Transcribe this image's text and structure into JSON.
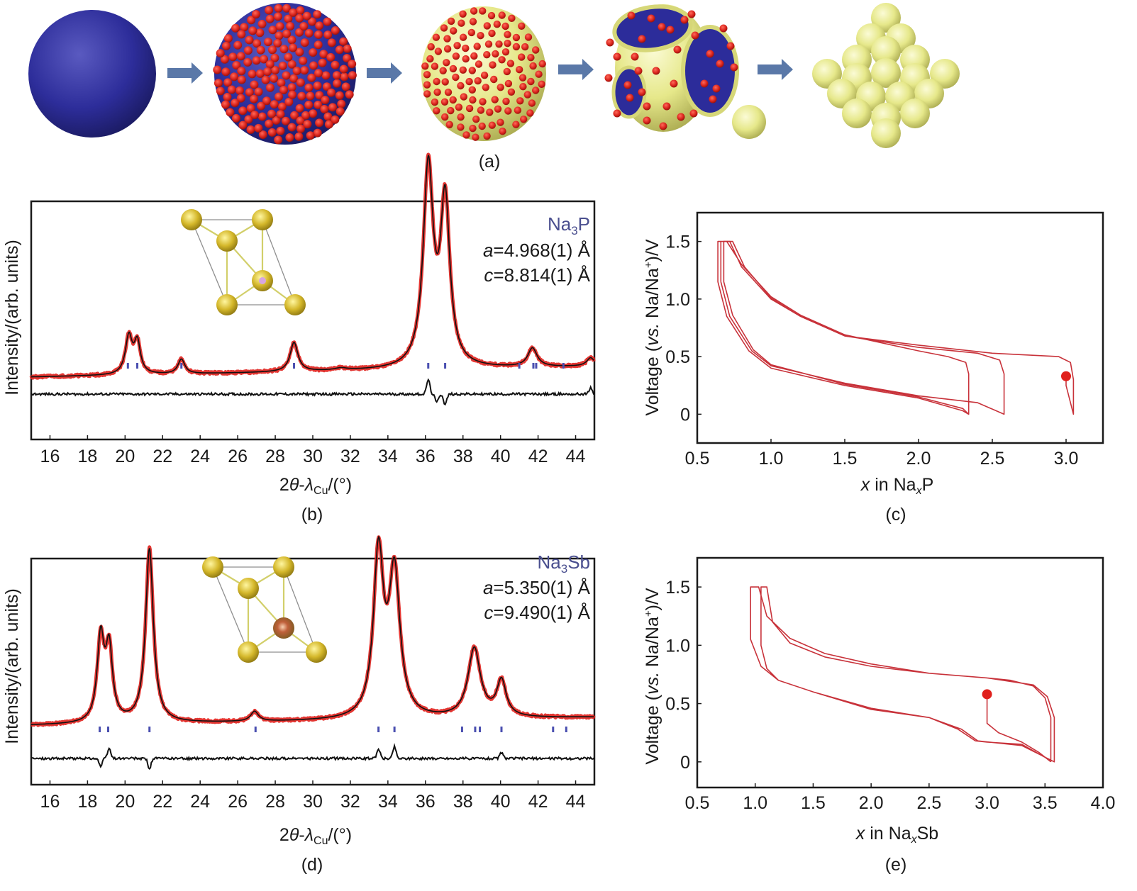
{
  "figure": {
    "panel_labels": {
      "a": "(a)",
      "b": "(b)",
      "c": "(c)",
      "d": "(d)",
      "e": "(e)"
    },
    "schematic": {
      "stages": [
        {
          "name": "bare-sphere",
          "description": "blue sphere"
        },
        {
          "name": "sphere-covered-with-red-particles",
          "description": "blue sphere densely covered with red particles"
        },
        {
          "name": "yellow-shell-with-red-particles",
          "description": "yellow shell with scattered red particles"
        },
        {
          "name": "broken-shell",
          "description": "yellow shell with blue openings, red particles, detached yellow sphere"
        },
        {
          "name": "packed-yellow-spheres",
          "description": "close-packed yellow spheres"
        }
      ],
      "arrow_count": 4,
      "colors": {
        "blue": "#2f2f96",
        "red": "#d9231c",
        "yellow": "#e9ea8f",
        "arrow": "#5a78a8"
      }
    }
  },
  "chart_data": [
    {
      "id": "b",
      "type": "line",
      "title": "",
      "xlabel": "2θ-λCu/(°)",
      "xlabel_parts": {
        "main": "2",
        "theta": "θ",
        "dash": "-",
        "lambda": "λ",
        "sub": "Cu",
        "unit": "/(°)"
      },
      "ylabel": "Intensity/(arb. units)",
      "xlim": [
        15,
        45
      ],
      "x_ticks": [
        16,
        18,
        20,
        22,
        24,
        26,
        28,
        30,
        32,
        34,
        36,
        38,
        40,
        42,
        44
      ],
      "y_ticks": [],
      "grid": false,
      "phase": {
        "name_main": "Na",
        "name_sub": "3",
        "name_end": "P",
        "a_label": "a",
        "a_value": "=4.968(1) Å",
        "c_label": "c",
        "c_value": "=8.814(1) Å"
      },
      "series": [
        {
          "name": "observed",
          "color": "#e0201c",
          "baseline": 0.3,
          "slope": 0.05,
          "peaks": [
            [
              20.2,
              0.18,
              0.22
            ],
            [
              20.65,
              0.15,
              0.2
            ],
            [
              23.0,
              0.07,
              0.22
            ],
            [
              29.0,
              0.14,
              0.25
            ],
            [
              31.5,
              0.01,
              0.4
            ],
            [
              36.15,
              0.95,
              0.32
            ],
            [
              37.05,
              0.78,
              0.3
            ],
            [
              41.7,
              0.09,
              0.3
            ],
            [
              44.8,
              0.04,
              0.25
            ]
          ]
        },
        {
          "name": "calculated",
          "color": "#111111"
        },
        {
          "name": "difference",
          "color": "#111111",
          "offset": -0.35,
          "features": [
            [
              36.15,
              0.07
            ],
            [
              36.6,
              -0.04
            ],
            [
              37.05,
              -0.05
            ],
            [
              44.8,
              0.03
            ]
          ]
        }
      ],
      "bragg_positions": [
        20.15,
        20.65,
        23.0,
        29.0,
        36.15,
        37.05,
        41.0,
        41.75,
        41.9,
        43.35
      ],
      "bragg_color": "#4a4fb0"
    },
    {
      "id": "d",
      "type": "line",
      "title": "",
      "xlabel": "2θ-λCu/(°)",
      "xlabel_parts": {
        "main": "2",
        "theta": "θ",
        "dash": "-",
        "lambda": "λ",
        "sub": "Cu",
        "unit": "/(°)"
      },
      "ylabel": "Intensity/(arb. units)",
      "xlim": [
        15,
        45
      ],
      "x_ticks": [
        16,
        18,
        20,
        22,
        24,
        26,
        28,
        30,
        32,
        34,
        36,
        38,
        40,
        42,
        44
      ],
      "y_ticks": [],
      "grid": false,
      "phase": {
        "name_main": "Na",
        "name_sub": "3",
        "name_end": "Sb",
        "a_label": "a",
        "a_value": "=5.350(1) Å",
        "c_label": "c",
        "c_value": "=9.490(1) Å"
      },
      "series": [
        {
          "name": "observed",
          "color": "#e0201c",
          "baseline": 0.3,
          "slope": 0.04,
          "peaks": [
            [
              18.7,
              0.42,
              0.22
            ],
            [
              19.15,
              0.36,
              0.22
            ],
            [
              21.3,
              0.88,
              0.25
            ],
            [
              26.9,
              0.05,
              0.25
            ],
            [
              33.5,
              0.82,
              0.32
            ],
            [
              34.35,
              0.72,
              0.35
            ],
            [
              38.6,
              0.35,
              0.4
            ],
            [
              40.05,
              0.18,
              0.3
            ]
          ]
        },
        {
          "name": "calculated",
          "color": "#111111"
        },
        {
          "name": "difference",
          "color": "#111111",
          "offset": -0.32,
          "features": [
            [
              18.7,
              -0.04
            ],
            [
              19.15,
              0.05
            ],
            [
              21.3,
              -0.05
            ],
            [
              33.5,
              0.05
            ],
            [
              34.35,
              0.06
            ],
            [
              40.05,
              0.03
            ]
          ]
        }
      ],
      "bragg_positions": [
        18.65,
        19.1,
        21.3,
        26.95,
        33.5,
        34.35,
        37.95,
        38.65,
        38.9,
        40.05,
        42.8,
        43.5
      ],
      "bragg_color": "#4a4fb0"
    },
    {
      "id": "c",
      "type": "line",
      "title": "",
      "xlabel_parts": {
        "x": "x",
        "in": " in Na",
        "sub": "x",
        "end": "P"
      },
      "xlabel": "x in NaxP",
      "ylabel": "Voltage (vs. Na/Na+)/V",
      "ylabel_parts": {
        "pre": "Voltage (",
        "vs": "vs.",
        "mid": " Na/Na",
        "sup": "+",
        "post": ")/V"
      },
      "xlim": [
        0.5,
        3.25
      ],
      "ylim": [
        -0.25,
        1.75
      ],
      "x_ticks": [
        "0.5",
        "1.0",
        "1.5",
        "2.0",
        "2.5",
        "3.0"
      ],
      "y_ticks": [
        "0",
        "0.5",
        "1.0",
        "1.5"
      ],
      "grid": false,
      "color": "#c8323a",
      "start_point": {
        "x": 3.0,
        "y": 0.33,
        "color": "#e0201c"
      },
      "series": [
        {
          "name": "cycle-1",
          "points": [
            [
              3.0,
              0.33
            ],
            [
              3.0,
              0.25
            ],
            [
              3.05,
              0.0
            ],
            [
              3.05,
              0.3
            ],
            [
              3.03,
              0.45
            ],
            [
              2.95,
              0.5
            ],
            [
              2.5,
              0.53
            ],
            [
              2.0,
              0.6
            ],
            [
              1.5,
              0.68
            ],
            [
              1.2,
              0.85
            ],
            [
              1.0,
              1.0
            ],
            [
              0.8,
              1.28
            ],
            [
              0.72,
              1.5
            ],
            [
              0.64,
              1.5
            ],
            [
              0.64,
              1.15
            ],
            [
              0.7,
              0.85
            ],
            [
              0.85,
              0.55
            ],
            [
              1.0,
              0.4
            ],
            [
              1.5,
              0.25
            ],
            [
              2.0,
              0.14
            ],
            [
              2.3,
              0.03
            ],
            [
              2.34,
              0.0
            ],
            [
              2.34,
              0.35
            ],
            [
              2.32,
              0.45
            ],
            [
              2.2,
              0.5
            ],
            [
              2.0,
              0.55
            ],
            [
              1.5,
              0.69
            ],
            [
              1.2,
              0.86
            ],
            [
              1.0,
              1.02
            ],
            [
              0.8,
              1.3
            ],
            [
              0.7,
              1.5
            ],
            [
              0.66,
              1.5
            ],
            [
              0.66,
              1.15
            ]
          ]
        },
        {
          "name": "cycle-2",
          "points": [
            [
              0.66,
              1.15
            ],
            [
              0.72,
              0.85
            ],
            [
              0.87,
              0.55
            ],
            [
              1.0,
              0.42
            ],
            [
              1.5,
              0.27
            ],
            [
              2.0,
              0.16
            ],
            [
              2.4,
              0.1
            ],
            [
              2.58,
              0.0
            ],
            [
              2.58,
              0.35
            ],
            [
              2.55,
              0.47
            ],
            [
              2.4,
              0.53
            ],
            [
              2.0,
              0.58
            ],
            [
              1.5,
              0.68
            ],
            [
              1.2,
              0.85
            ],
            [
              1.0,
              1.01
            ],
            [
              0.82,
              1.28
            ],
            [
              0.74,
              1.5
            ],
            [
              0.68,
              1.5
            ],
            [
              0.68,
              1.15
            ],
            [
              0.74,
              0.86
            ],
            [
              0.88,
              0.56
            ],
            [
              1.0,
              0.43
            ],
            [
              1.5,
              0.26
            ],
            [
              2.0,
              0.15
            ],
            [
              2.3,
              0.05
            ],
            [
              2.34,
              0.0
            ]
          ]
        }
      ]
    },
    {
      "id": "e",
      "type": "line",
      "title": "",
      "xlabel_parts": {
        "x": "x",
        "in": " in Na",
        "sub": "x",
        "end": "Sb"
      },
      "xlabel": "x in NaxSb",
      "ylabel": "Voltage (vs. Na/Na+)/V",
      "ylabel_parts": {
        "pre": "Voltage (",
        "vs": "vs.",
        "mid": " Na/Na",
        "sup": "+",
        "post": ")/V"
      },
      "xlim": [
        0.5,
        4.0
      ],
      "ylim": [
        -0.22,
        1.75
      ],
      "x_ticks": [
        "0.5",
        "1.0",
        "1.5",
        "2.0",
        "2.5",
        "3.0",
        "3.5",
        "4.0"
      ],
      "y_ticks": [
        "0",
        "0.5",
        "1.0",
        "1.5"
      ],
      "grid": false,
      "color": "#c8323a",
      "start_point": {
        "x": 3.0,
        "y": 0.58,
        "color": "#e0201c"
      },
      "series": [
        {
          "name": "first-discharge",
          "points": [
            [
              3.0,
              0.58
            ],
            [
              3.0,
              0.33
            ],
            [
              3.1,
              0.25
            ],
            [
              3.3,
              0.17
            ],
            [
              3.45,
              0.08
            ],
            [
              3.55,
              0.0
            ]
          ]
        },
        {
          "name": "cycle-1",
          "points": [
            [
              3.55,
              0.0
            ],
            [
              3.55,
              0.38
            ],
            [
              3.5,
              0.55
            ],
            [
              3.4,
              0.65
            ],
            [
              3.2,
              0.7
            ],
            [
              3.0,
              0.72
            ],
            [
              2.5,
              0.76
            ],
            [
              2.0,
              0.82
            ],
            [
              1.6,
              0.9
            ],
            [
              1.3,
              1.02
            ],
            [
              1.15,
              1.2
            ],
            [
              1.1,
              1.5
            ],
            [
              1.05,
              1.5
            ],
            [
              1.05,
              1.0
            ],
            [
              1.1,
              0.8
            ],
            [
              1.2,
              0.7
            ],
            [
              1.5,
              0.6
            ],
            [
              2.0,
              0.45
            ],
            [
              2.5,
              0.38
            ],
            [
              2.75,
              0.28
            ],
            [
              2.9,
              0.18
            ],
            [
              3.0,
              0.17
            ],
            [
              3.3,
              0.15
            ],
            [
              3.48,
              0.05
            ],
            [
              3.58,
              0.0
            ],
            [
              3.58,
              0.38
            ],
            [
              3.52,
              0.56
            ],
            [
              3.4,
              0.66
            ],
            [
              3.0,
              0.72
            ],
            [
              2.5,
              0.76
            ],
            [
              2.0,
              0.84
            ],
            [
              1.6,
              0.93
            ],
            [
              1.3,
              1.06
            ],
            [
              1.1,
              1.25
            ],
            [
              1.03,
              1.5
            ],
            [
              0.96,
              1.5
            ],
            [
              0.96,
              1.05
            ],
            [
              1.05,
              0.82
            ],
            [
              1.2,
              0.7
            ],
            [
              1.5,
              0.6
            ],
            [
              2.0,
              0.46
            ],
            [
              2.5,
              0.38
            ],
            [
              2.78,
              0.28
            ],
            [
              2.92,
              0.18
            ],
            [
              3.3,
              0.14
            ],
            [
              3.5,
              0.04
            ],
            [
              3.58,
              0.0
            ]
          ]
        }
      ]
    }
  ]
}
